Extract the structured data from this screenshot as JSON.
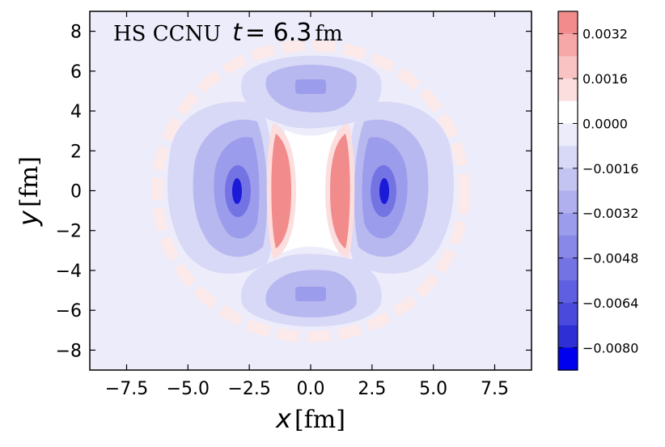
{
  "chart_data": {
    "type": "heatmap",
    "annotation": {
      "label": "HS  CCNU",
      "t_symbol": "t",
      "eq": " = ",
      "t_value": "6.3",
      "t_unit": "fm"
    },
    "xlabel": {
      "symbol": "x",
      "unit": " [fm]"
    },
    "ylabel": {
      "symbol": "y",
      "unit": " [fm]"
    },
    "xlim": [
      -9,
      9
    ],
    "ylim": [
      -9,
      9
    ],
    "xticks": [
      -7.5,
      -5.0,
      -2.5,
      0.0,
      2.5,
      5.0,
      7.5
    ],
    "xtick_labels": [
      "−7.5",
      "−5.0",
      "−2.5",
      "0.0",
      "2.5",
      "5.0",
      "7.5"
    ],
    "yticks": [
      -8,
      -6,
      -4,
      -2,
      0,
      2,
      4,
      6,
      8
    ],
    "ytick_labels": [
      "−8",
      "−6",
      "−4",
      "−2",
      "0",
      "2",
      "4",
      "6",
      "8"
    ],
    "colorbar": {
      "range": [
        -0.0088,
        0.004
      ],
      "ticks": [
        0.0032,
        0.0016,
        0.0,
        -0.0016,
        -0.0032,
        -0.0048,
        -0.0064,
        -0.008
      ],
      "tick_labels": [
        "0.0032",
        "0.0016",
        "0.0000",
        "−0.0016",
        "−0.0032",
        "−0.0048",
        "−0.0064",
        "−0.0080"
      ],
      "levels": [
        {
          "value": 0.0036,
          "color": "#f28c8c"
        },
        {
          "value": 0.0028,
          "color": "#f6a8a8"
        },
        {
          "value": 0.002,
          "color": "#f9c3c3"
        },
        {
          "value": 0.0012,
          "color": "#fcdede"
        },
        {
          "value": 0.0004,
          "color": "#ffffff"
        },
        {
          "value": -0.0004,
          "color": "#ececfb"
        },
        {
          "value": -0.0012,
          "color": "#d8d8f7"
        },
        {
          "value": -0.002,
          "color": "#c4c4f3"
        },
        {
          "value": -0.0028,
          "color": "#b0b0ef"
        },
        {
          "value": -0.0036,
          "color": "#9c9cec"
        },
        {
          "value": -0.0044,
          "color": "#8888e8"
        },
        {
          "value": -0.0052,
          "color": "#7373e4"
        },
        {
          "value": -0.006,
          "color": "#5f5fe1"
        },
        {
          "value": -0.0068,
          "color": "#4a4add"
        },
        {
          "value": -0.0076,
          "color": "#2f2fd6"
        },
        {
          "value": -0.0084,
          "color": "#0000ee"
        }
      ]
    },
    "regions": [
      {
        "name": "background",
        "value": -0.0004,
        "x": 0,
        "y": 0
      },
      {
        "name": "left-lobe",
        "value": -0.0024,
        "x": -3.2,
        "y": 0
      },
      {
        "name": "left-lobe-core",
        "value": -0.0052,
        "x": -3.0,
        "y": 0
      },
      {
        "name": "left-lobe-peak",
        "value": -0.0084,
        "x": -3.0,
        "y": 0
      },
      {
        "name": "right-lobe",
        "value": -0.0024,
        "x": 3.2,
        "y": 0
      },
      {
        "name": "right-lobe-core",
        "value": -0.0052,
        "x": 3.0,
        "y": 0
      },
      {
        "name": "right-lobe-peak",
        "value": -0.0084,
        "x": 3.0,
        "y": 0
      },
      {
        "name": "top-lobe",
        "value": -0.0022,
        "x": 0,
        "y": 5.2
      },
      {
        "name": "top-lobe-core",
        "value": -0.0044,
        "x": 0,
        "y": 5.2
      },
      {
        "name": "bottom-lobe",
        "value": -0.0022,
        "x": 0,
        "y": -5.2
      },
      {
        "name": "bottom-lobe-core",
        "value": -0.0044,
        "x": 0,
        "y": -5.2
      },
      {
        "name": "left-stripe",
        "value": 0.0028,
        "x": -1.3,
        "y": 0
      },
      {
        "name": "right-stripe",
        "value": 0.0028,
        "x": 1.3,
        "y": 0
      }
    ]
  }
}
